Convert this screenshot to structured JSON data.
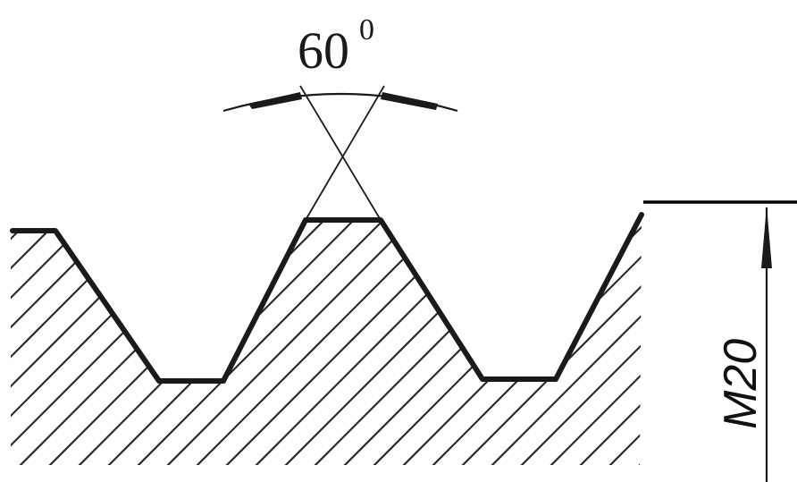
{
  "diagram": {
    "angle_label": {
      "value": "60",
      "superscript": "0"
    },
    "size_label": "M20"
  },
  "colors": {
    "ink": "#1a1a1a",
    "background": "#ffffff"
  }
}
